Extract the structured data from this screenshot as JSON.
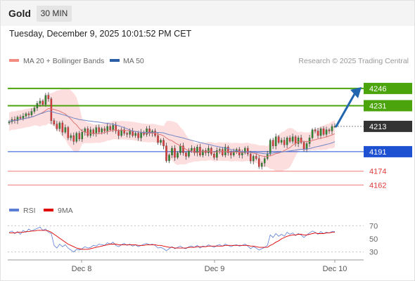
{
  "header": {
    "title": "Gold",
    "interval": "30 MIN",
    "timestamp": "Tuesday, December 9, 2025 10:01:52 PM CET",
    "source": "Research © 2025 Trading Central"
  },
  "legend": [
    {
      "label": "MA 20 + Bollinger Bands",
      "color": "#f28b82"
    },
    {
      "label": "MA 50",
      "color": "#2c5ea8"
    }
  ],
  "rsi_legend": [
    {
      "label": "RSI",
      "color": "#5b7fd6"
    },
    {
      "label": "9MA",
      "color": "#e00000"
    }
  ],
  "colors": {
    "up": "#2e8b2e",
    "down": "#e23b3b",
    "resistance": "#4ca40d",
    "support": "#1e50d2",
    "lower_support": "#f07b7b",
    "current": "#333333",
    "arrow": "#2266b0",
    "bollinger_fill": "#fbd3d3",
    "ma50": "#6f86c7",
    "ma20": "#e07575"
  },
  "chart_data": {
    "type": "candlestick",
    "x_ticks": [
      "Dec 8",
      "Dec 9",
      "Dec 10"
    ],
    "ylim": [
      4150,
      4260
    ],
    "levels": [
      {
        "value": 4246,
        "label": "4246",
        "kind": "resistance"
      },
      {
        "value": 4231,
        "label": "4231",
        "kind": "resistance"
      },
      {
        "value": 4213,
        "label": "4213",
        "kind": "current"
      },
      {
        "value": 4191,
        "label": "4191",
        "kind": "support"
      },
      {
        "value": 4174,
        "label": "4174",
        "kind": "support-minor"
      },
      {
        "value": 4162,
        "label": "4162",
        "kind": "support-minor"
      }
    ],
    "forecast": {
      "from": 4213,
      "to": 4246
    },
    "closes": [
      4217,
      4219,
      4218,
      4221,
      4220,
      4222,
      4224,
      4223,
      4226,
      4229,
      4233,
      4235,
      4232,
      4240,
      4237,
      4218,
      4215,
      4211,
      4216,
      4208,
      4212,
      4203,
      4205,
      4200,
      4207,
      4202,
      4208,
      4211,
      4205,
      4210,
      4207,
      4212,
      4208,
      4211,
      4209,
      4213,
      4210,
      4214,
      4209,
      4205,
      4210,
      4207,
      4206,
      4209,
      4205,
      4207,
      4203,
      4208,
      4206,
      4211,
      4207,
      4209,
      4205,
      4199,
      4201,
      4196,
      4183,
      4188,
      4194,
      4186,
      4190,
      4196,
      4190,
      4187,
      4192,
      4194,
      4190,
      4195,
      4188,
      4192,
      4190,
      4194,
      4189,
      4186,
      4192,
      4193,
      4188,
      4195,
      4190,
      4188,
      4191,
      4193,
      4188,
      4190,
      4194,
      4189,
      4183,
      4187,
      4185,
      4178,
      4181,
      4185,
      4189,
      4201,
      4196,
      4204,
      4199,
      4201,
      4197,
      4203,
      4200,
      4204,
      4198,
      4203,
      4199,
      4193,
      4198,
      4203,
      4210,
      4209,
      4205,
      4211,
      4206,
      4210,
      4209,
      4213,
      4213
    ],
    "rsi": [
      60,
      62,
      58,
      61,
      57,
      63,
      60,
      65,
      62,
      64,
      66,
      68,
      63,
      65,
      60,
      58,
      40,
      36,
      42,
      38,
      41,
      36,
      33,
      30,
      34,
      33,
      35,
      38,
      36,
      37,
      40,
      39,
      42,
      41,
      40,
      44,
      42,
      45,
      40,
      38,
      41,
      43,
      40,
      42,
      39,
      41,
      38,
      40,
      42,
      43,
      41,
      42,
      40,
      36,
      37,
      35,
      32,
      35,
      38,
      35,
      37,
      39,
      36,
      35,
      38,
      39,
      37,
      40,
      36,
      39,
      38,
      41,
      39,
      37,
      40,
      41,
      39,
      42,
      40,
      38,
      40,
      41,
      39,
      40,
      42,
      39,
      35,
      38,
      36,
      33,
      35,
      37,
      40,
      56,
      52,
      58,
      54,
      57,
      54,
      60,
      57,
      59,
      55,
      58,
      56,
      52,
      56,
      59,
      62,
      60,
      57,
      61,
      58,
      60,
      59,
      61,
      61
    ],
    "rsi_ma": [
      59,
      59,
      59,
      60,
      60,
      60,
      61,
      61,
      62,
      62,
      63,
      63,
      63,
      63,
      62,
      60,
      57,
      54,
      51,
      48,
      45,
      42,
      40,
      38,
      36,
      35,
      34,
      34,
      34,
      35,
      36,
      37,
      38,
      39,
      40,
      41,
      42,
      42,
      42,
      41,
      41,
      41,
      41,
      41,
      41,
      41,
      40,
      40,
      40,
      41,
      41,
      41,
      41,
      40,
      40,
      39,
      38,
      37,
      37,
      36,
      36,
      36,
      36,
      36,
      37,
      37,
      37,
      38,
      38,
      38,
      38,
      39,
      39,
      39,
      39,
      39,
      39,
      40,
      40,
      40,
      40,
      40,
      40,
      40,
      40,
      40,
      39,
      39,
      38,
      37,
      37,
      37,
      37,
      40,
      42,
      45,
      47,
      50,
      52,
      54,
      55,
      56,
      56,
      57,
      57,
      56,
      56,
      57,
      58,
      59,
      58,
      58,
      58,
      59,
      59,
      60,
      60
    ],
    "rsi_scale": {
      "labels": [
        "70",
        "50",
        "30"
      ],
      "ylim": [
        20,
        80
      ]
    }
  }
}
